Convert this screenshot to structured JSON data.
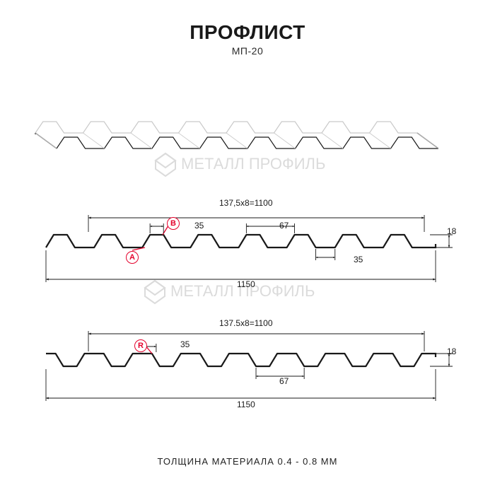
{
  "title": {
    "main": "ПРОФЛИСТ",
    "sub": "МП-20"
  },
  "caption": "ТОЛЩИНА МАТЕРИАЛА 0.4 - 0.8 ММ",
  "watermark": {
    "text": "МЕТАЛЛ ПРОФИЛЬ",
    "color": "#d8d8d8",
    "fontsize": 26,
    "fontweight": 500
  },
  "colors": {
    "bg": "#ffffff",
    "profile_stroke": "#191919",
    "profile_fill": "#ffffff",
    "dim_stroke": "#191919",
    "accent": "#e4002b",
    "iso_back": "#c9c9c9"
  },
  "sections": {
    "upper": {
      "total_dim_top": "137,5x8=1100",
      "overall_bottom": "1150",
      "height": "18",
      "gap_top": "67",
      "gap_bottom": "35",
      "flange": "35"
    },
    "lower": {
      "total_dim_top": "137.5x8=1100",
      "overall_bottom": "1150",
      "height": "18",
      "gap_top": "67",
      "flange": "35"
    }
  },
  "iso": {
    "ribs": 8,
    "stroke_w": 1.2
  },
  "section_style": {
    "stroke_w": 2.2,
    "dim_stroke_w": 0.9,
    "arrow_size": 4
  },
  "badges": {
    "A": "A",
    "B": "B",
    "R": "R"
  }
}
